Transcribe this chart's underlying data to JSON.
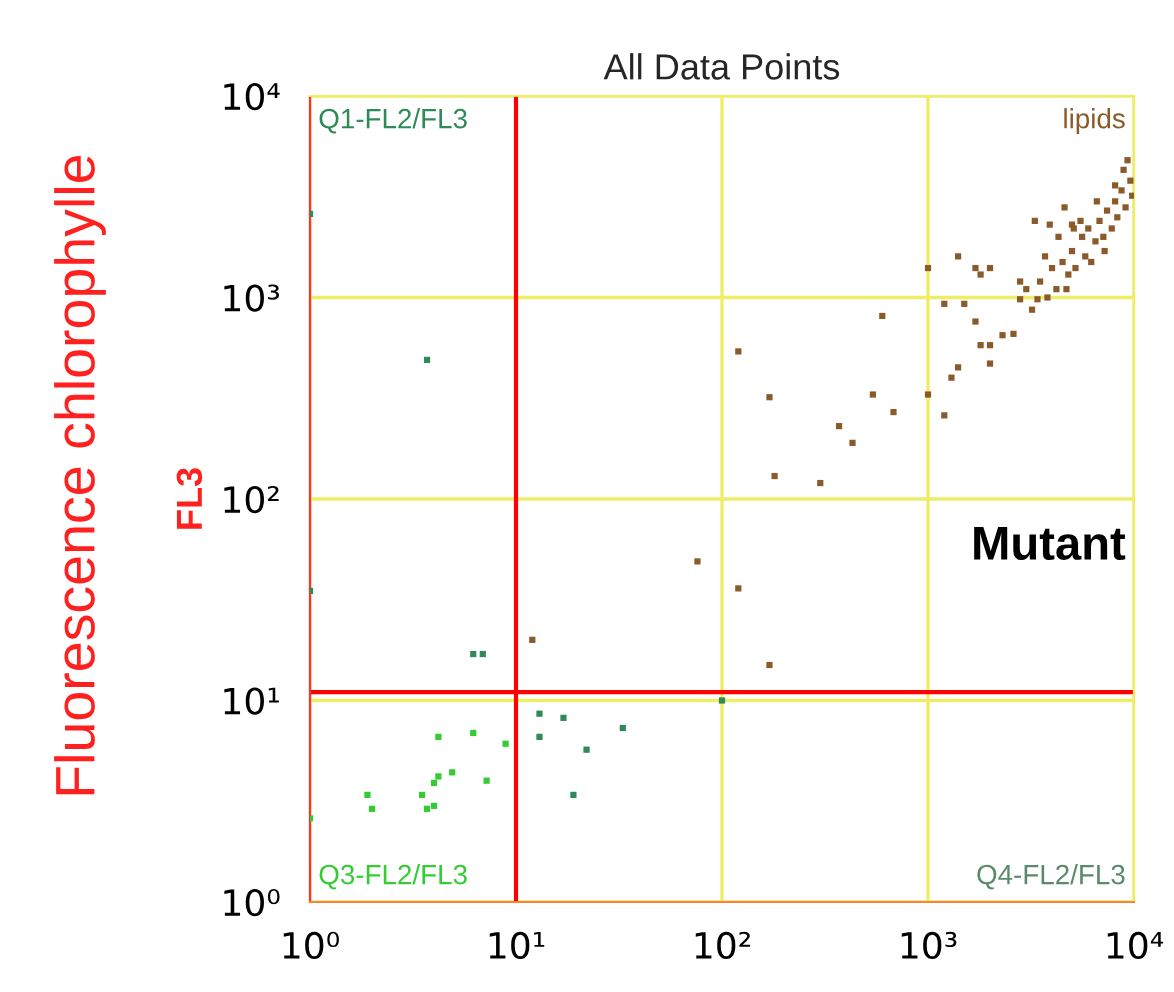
{
  "chart_data": {
    "type": "scatter",
    "title": "All Data Points",
    "ylabel": "FL3",
    "annotations": [
      "Fluorescence chlorophylle",
      "Q1-FL2/FL3",
      "lipids",
      "Q3-FL2/FL3",
      "Q4-FL2/FL3",
      "Mutant"
    ],
    "log": "xy",
    "grid": true,
    "legend": false,
    "marker": "square",
    "xlim": [
      1,
      10000
    ],
    "ylim": [
      1,
      10000
    ],
    "xticks": [
      {
        "value": 1,
        "label": "10⁰"
      },
      {
        "value": 10,
        "label": "10¹"
      },
      {
        "value": 100,
        "label": "10²"
      },
      {
        "value": 1000,
        "label": "10³"
      },
      {
        "value": 10000,
        "label": "10⁴"
      }
    ],
    "yticks": [
      {
        "value": 1,
        "label": "10⁰"
      },
      {
        "value": 10,
        "label": "10¹"
      },
      {
        "value": 100,
        "label": "10²"
      },
      {
        "value": 1000,
        "label": "10³"
      },
      {
        "value": 10000,
        "label": "10⁴"
      }
    ],
    "ref_lines": [
      {
        "axis": "x",
        "value": 10,
        "color": "#ff0000"
      },
      {
        "axis": "y",
        "value": 11,
        "color": "#ff0000"
      }
    ],
    "series": [
      {
        "color": "#33cc33",
        "x": [
          4.2,
          6.2,
          4.9,
          4.2,
          4.0,
          7.2,
          8.9,
          1.9,
          2.0,
          3.5,
          3.7,
          4.0,
          1.0
        ],
        "values": [
          6.6,
          6.9,
          4.4,
          4.2,
          3.9,
          4.0,
          6.1,
          3.4,
          2.9,
          3.4,
          2.9,
          3.0,
          2.6
        ]
      },
      {
        "color": "#2e8b57",
        "x": [
          13,
          17,
          13,
          22,
          33,
          19,
          100,
          6.2,
          6.9,
          1.0,
          3.7,
          1.0
        ],
        "values": [
          8.6,
          8.2,
          6.6,
          5.7,
          7.3,
          3.4,
          10,
          17,
          17,
          35,
          490,
          2600
        ]
      },
      {
        "color": "#8b5a2b",
        "x": [
          120,
          170,
          180,
          300,
          370,
          430,
          540,
          680,
          600,
          1000,
          1000,
          1200,
          1300,
          1400,
          1400,
          1700,
          1800,
          2000,
          1200,
          1500,
          1700,
          1800,
          2000,
          2000,
          2300,
          2600,
          3300,
          3900,
          4600,
          5000,
          76,
          120,
          170,
          12,
          2800,
          3000,
          3200,
          3500,
          3800,
          4000,
          4200,
          4500,
          4800,
          5000,
          5200,
          5600,
          5800,
          6000,
          6500,
          6800,
          7100,
          7400,
          7800,
          8100,
          8300,
          8700,
          9100,
          9600,
          9800,
          2800,
          3400,
          4700,
          5500,
          7200,
          8900,
          6200,
          3700,
          4300,
          5100,
          6600,
          8100,
          9300
        ],
        "values": [
          540,
          320,
          130,
          120,
          230,
          190,
          330,
          270,
          810,
          1400,
          330,
          260,
          400,
          450,
          1600,
          1400,
          1300,
          1400,
          930,
          930,
          760,
          580,
          470,
          580,
          650,
          660,
          2400,
          2300,
          2800,
          2300,
          49,
          36,
          15,
          20,
          980,
          1100,
          870,
          1200,
          1000,
          1400,
          1100,
          1500,
          1300,
          1700,
          1400,
          2000,
          1600,
          2200,
          1900,
          2400,
          2000,
          2700,
          2200,
          3000,
          2500,
          3400,
          2800,
          3800,
          3200,
          1200,
          980,
          1100,
          2400,
          1700,
          4300,
          1500,
          1600,
          2000,
          2200,
          3000,
          3600,
          4800
        ]
      }
    ]
  }
}
